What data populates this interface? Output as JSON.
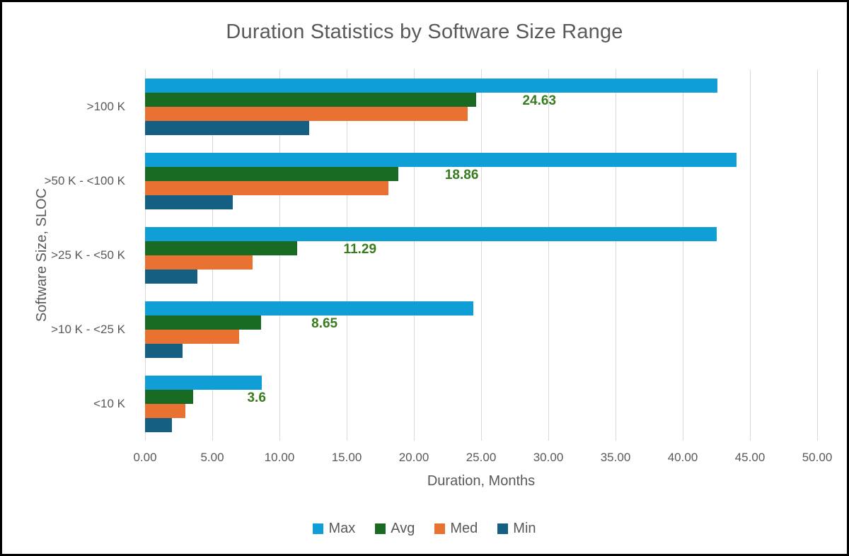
{
  "page": {
    "background": "#FFFFFF",
    "border_color": "#000000",
    "text_color": "#595959"
  },
  "chart_data": {
    "type": "bar",
    "orientation": "horizontal",
    "title": "Duration Statistics by Software Size Range",
    "xlabel": "Duration, Months",
    "ylabel": "Software Size, SLOC",
    "categories": [
      ">100 K",
      ">50 K - <100 K",
      ">25 K - <50 K",
      ">10 K - <25 K",
      "<10 K"
    ],
    "series": [
      {
        "name": "Max",
        "color": "#0F9ED5",
        "values": [
          42.6,
          44.0,
          42.5,
          24.4,
          8.7
        ]
      },
      {
        "name": "Avg",
        "color": "#196B24",
        "values": [
          24.63,
          18.86,
          11.29,
          8.65,
          3.6
        ]
      },
      {
        "name": "Med",
        "color": "#E97132",
        "values": [
          24.0,
          18.1,
          8.0,
          7.0,
          3.0
        ]
      },
      {
        "name": "Min",
        "color": "#156082",
        "values": [
          12.2,
          6.5,
          3.9,
          2.8,
          2.0
        ]
      }
    ],
    "data_labels": {
      "series": "Avg",
      "values": [
        "24.63",
        "18.86",
        "11.29",
        "8.65",
        "3.6"
      ],
      "color": "#377D1E"
    },
    "xlim": [
      0,
      50
    ],
    "x_ticks": [
      "0.00",
      "5.00",
      "10.00",
      "15.00",
      "20.00",
      "25.00",
      "30.00",
      "35.00",
      "40.00",
      "45.00",
      "50.00"
    ],
    "grid": true,
    "gridline_color": "#D9D9D9",
    "legend_position": "bottom",
    "legend_items": [
      "Max",
      "Avg",
      "Med",
      "Min"
    ]
  }
}
